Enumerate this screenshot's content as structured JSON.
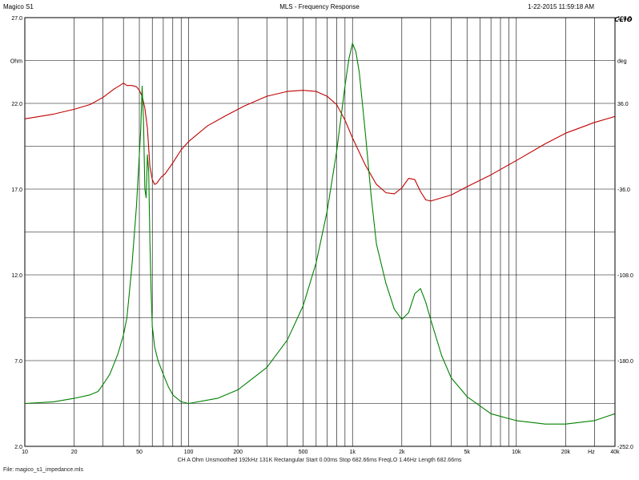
{
  "header": {
    "left": "Magico S1",
    "center": "MLS - Frequency Response",
    "right": "1-22-2015 11:59:18 AM"
  },
  "logo": "CLIO",
  "footer": {
    "info": "CH A   Ohm   Unsmoothed   192kHz   131K   Rectangular   Start 0.00ms   Stop 682.66ms   FreqLO 1.46Hz   Length 682.66ms",
    "file": "File: magico_s1_impedance.mls"
  },
  "colors": {
    "impedance": "#c00000",
    "phase": "#008000",
    "grid": "#000000",
    "background": "#ffffff"
  },
  "chart_data": {
    "type": "line",
    "x_scale": "log",
    "xlim": [
      10,
      40000
    ],
    "ylim_left": [
      2.0,
      27.0
    ],
    "ylim_right": [
      -252.0,
      108.0
    ],
    "left_unit": "Ohm",
    "right_unit": "deg",
    "x_unit": "Hz",
    "left_ticks": [
      "27.0",
      "22.0",
      "17.0",
      "12.0",
      "7.0",
      "2.0"
    ],
    "right_ticks": [
      "108.0",
      "36.0",
      "-36.0",
      "-108.0",
      "-180.0",
      "-252.0"
    ],
    "x_ticks": [
      {
        "v": 10,
        "label": "10"
      },
      {
        "v": 20,
        "label": "20"
      },
      {
        "v": 50,
        "label": "50"
      },
      {
        "v": 100,
        "label": "100"
      },
      {
        "v": 200,
        "label": "200"
      },
      {
        "v": 500,
        "label": "500"
      },
      {
        "v": 1000,
        "label": "1k"
      },
      {
        "v": 2000,
        "label": "2k"
      },
      {
        "v": 5000,
        "label": "5k"
      },
      {
        "v": 10000,
        "label": "10k"
      },
      {
        "v": 20000,
        "label": "20k"
      },
      {
        "v": 40000,
        "label": "40k"
      }
    ],
    "grid": true,
    "series": [
      {
        "axis": "right",
        "color": "#c00000",
        "x": [
          10,
          15,
          20,
          25,
          30,
          35,
          38,
          40,
          42,
          45,
          48,
          50,
          52,
          54,
          56,
          58,
          60,
          62,
          64,
          68,
          72,
          80,
          90,
          100,
          130,
          170,
          220,
          300,
          400,
          500,
          600,
          700,
          800,
          900,
          1000,
          1200,
          1400,
          1600,
          1800,
          2000,
          2200,
          2400,
          2600,
          2800,
          3000,
          4000,
          5000,
          7000,
          10000,
          15000,
          20000,
          30000,
          40000
        ],
        "y": [
          23,
          27,
          31,
          35,
          41,
          48,
          51,
          53,
          51,
          51,
          50,
          47,
          42,
          32,
          15,
          -17,
          -28,
          -32,
          -31,
          -26,
          -23,
          -14,
          -3,
          4,
          17,
          26,
          34,
          42,
          46,
          47,
          46,
          42,
          35,
          22,
          7,
          -16,
          -32,
          -39,
          -40,
          -35,
          -27,
          -28,
          -38,
          -45,
          -46,
          -41,
          -34,
          -24,
          -12,
          2,
          11,
          20,
          25
        ]
      },
      {
        "axis": "left",
        "color": "#008000",
        "x": [
          10,
          15,
          20,
          25,
          28,
          30,
          33,
          35,
          37,
          40,
          42,
          45,
          48,
          50,
          51,
          52,
          53,
          54,
          55,
          56,
          57,
          58,
          59,
          60,
          62,
          65,
          70,
          75,
          80,
          90,
          100,
          150,
          200,
          300,
          400,
          500,
          600,
          700,
          800,
          900,
          950,
          1000,
          1050,
          1100,
          1200,
          1300,
          1400,
          1600,
          1800,
          2000,
          2200,
          2400,
          2600,
          2800,
          3000,
          3500,
          4000,
          5000,
          7000,
          10000,
          15000,
          20000,
          30000,
          40000
        ],
        "y": [
          4.5,
          4.6,
          4.8,
          5.0,
          5.2,
          5.6,
          6.2,
          6.8,
          7.4,
          8.5,
          9.5,
          12.5,
          16.0,
          19.0,
          20.5,
          23.0,
          21.0,
          17.0,
          16.5,
          19.0,
          18.0,
          14.0,
          11.0,
          9.0,
          7.8,
          7.0,
          6.2,
          5.5,
          5.0,
          4.6,
          4.5,
          4.8,
          5.3,
          6.6,
          8.2,
          10.2,
          12.7,
          15.7,
          19.2,
          23.0,
          24.6,
          25.5,
          25.0,
          23.8,
          20.2,
          16.6,
          13.8,
          11.5,
          10.0,
          9.4,
          9.8,
          10.9,
          11.2,
          10.4,
          9.4,
          7.3,
          6.0,
          4.9,
          3.9,
          3.5,
          3.3,
          3.3,
          3.5,
          3.9
        ]
      }
    ]
  }
}
